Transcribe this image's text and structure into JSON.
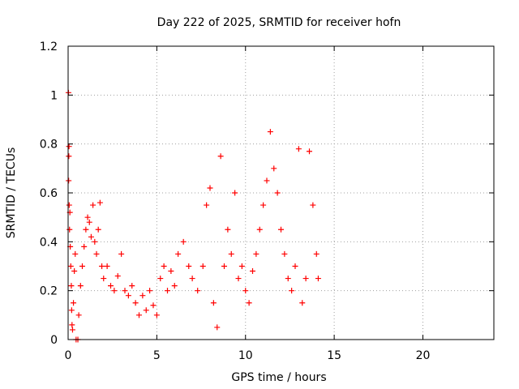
{
  "chart_data": {
    "type": "scatter",
    "title": "Day 222 of 2025, SRMTID for receiver hofn",
    "xlabel": "GPS time / hours",
    "ylabel": "SRMTID / TECUs",
    "xlim": [
      0,
      24
    ],
    "ylim": [
      0,
      1.2
    ],
    "x_ticks": [
      0,
      5,
      10,
      15,
      20
    ],
    "x_tick_labels": [
      "0",
      "5",
      "10",
      "15",
      "20"
    ],
    "y_ticks": [
      0,
      0.2,
      0.4,
      0.6,
      0.8,
      1.0,
      1.2
    ],
    "y_tick_labels": [
      "0",
      "0.2",
      "0.4",
      "0.6",
      "0.8",
      "1",
      "1.2"
    ],
    "grid": true,
    "marker": "plus",
    "series": [
      {
        "name": "SRMTID",
        "color": "#ff0000",
        "points": [
          [
            0.02,
            1.01
          ],
          [
            0.05,
            0.79
          ],
          [
            0.04,
            0.75
          ],
          [
            0.03,
            0.65
          ],
          [
            0.06,
            0.55
          ],
          [
            0.1,
            0.52
          ],
          [
            0.08,
            0.45
          ],
          [
            0.12,
            0.38
          ],
          [
            0.15,
            0.3
          ],
          [
            0.18,
            0.22
          ],
          [
            0.2,
            0.12
          ],
          [
            0.22,
            0.06
          ],
          [
            0.25,
            0.04
          ],
          [
            0.3,
            0.15
          ],
          [
            0.35,
            0.28
          ],
          [
            0.4,
            0.35
          ],
          [
            0.45,
            0.0
          ],
          [
            0.55,
            0.0
          ],
          [
            0.6,
            0.1
          ],
          [
            0.7,
            0.22
          ],
          [
            0.8,
            0.3
          ],
          [
            0.9,
            0.38
          ],
          [
            1.0,
            0.45
          ],
          [
            1.1,
            0.5
          ],
          [
            1.2,
            0.48
          ],
          [
            1.3,
            0.42
          ],
          [
            1.4,
            0.55
          ],
          [
            1.5,
            0.4
          ],
          [
            1.6,
            0.35
          ],
          [
            1.7,
            0.45
          ],
          [
            1.8,
            0.56
          ],
          [
            1.9,
            0.3
          ],
          [
            2.0,
            0.25
          ],
          [
            2.2,
            0.3
          ],
          [
            2.4,
            0.22
          ],
          [
            2.6,
            0.2
          ],
          [
            2.8,
            0.26
          ],
          [
            3.0,
            0.35
          ],
          [
            3.2,
            0.2
          ],
          [
            3.4,
            0.18
          ],
          [
            3.6,
            0.22
          ],
          [
            3.8,
            0.15
          ],
          [
            4.0,
            0.1
          ],
          [
            4.2,
            0.18
          ],
          [
            4.4,
            0.12
          ],
          [
            4.6,
            0.2
          ],
          [
            4.8,
            0.14
          ],
          [
            5.0,
            0.1
          ],
          [
            5.2,
            0.25
          ],
          [
            5.4,
            0.3
          ],
          [
            5.6,
            0.2
          ],
          [
            5.8,
            0.28
          ],
          [
            6.0,
            0.22
          ],
          [
            6.2,
            0.35
          ],
          [
            6.5,
            0.4
          ],
          [
            6.8,
            0.3
          ],
          [
            7.0,
            0.25
          ],
          [
            7.3,
            0.2
          ],
          [
            7.6,
            0.3
          ],
          [
            7.8,
            0.55
          ],
          [
            8.0,
            0.62
          ],
          [
            8.2,
            0.15
          ],
          [
            8.4,
            0.05
          ],
          [
            8.6,
            0.75
          ],
          [
            8.8,
            0.3
          ],
          [
            9.0,
            0.45
          ],
          [
            9.2,
            0.35
          ],
          [
            9.4,
            0.6
          ],
          [
            9.6,
            0.25
          ],
          [
            9.8,
            0.3
          ],
          [
            10.0,
            0.2
          ],
          [
            10.2,
            0.15
          ],
          [
            10.4,
            0.28
          ],
          [
            10.6,
            0.35
          ],
          [
            10.8,
            0.45
          ],
          [
            11.0,
            0.55
          ],
          [
            11.2,
            0.65
          ],
          [
            11.4,
            0.85
          ],
          [
            11.6,
            0.7
          ],
          [
            11.8,
            0.6
          ],
          [
            12.0,
            0.45
          ],
          [
            12.2,
            0.35
          ],
          [
            12.4,
            0.25
          ],
          [
            12.6,
            0.2
          ],
          [
            12.8,
            0.3
          ],
          [
            13.0,
            0.78
          ],
          [
            13.2,
            0.15
          ],
          [
            13.4,
            0.25
          ],
          [
            13.6,
            0.77
          ],
          [
            13.8,
            0.55
          ],
          [
            14.0,
            0.35
          ],
          [
            14.1,
            0.25
          ]
        ]
      }
    ]
  }
}
